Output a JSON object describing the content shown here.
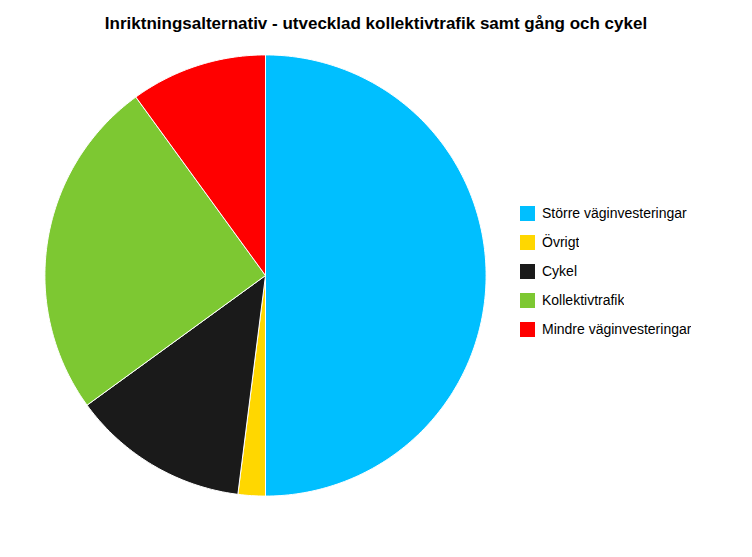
{
  "chart_data": {
    "type": "pie",
    "title": "Inriktningsalternativ - utvecklad kollektivtrafik samt gång och cykel",
    "categories": [
      "Större väginvesteringar",
      "Övrigt",
      "Cykel",
      "Kollektivtrafik",
      "Mindre väginvesteringar"
    ],
    "values": [
      50,
      2,
      13,
      25,
      10
    ],
    "colors": [
      "#00BFFF",
      "#FFD700",
      "#1A1A1A",
      "#7DC832",
      "#FF0000"
    ],
    "legend": "right"
  }
}
